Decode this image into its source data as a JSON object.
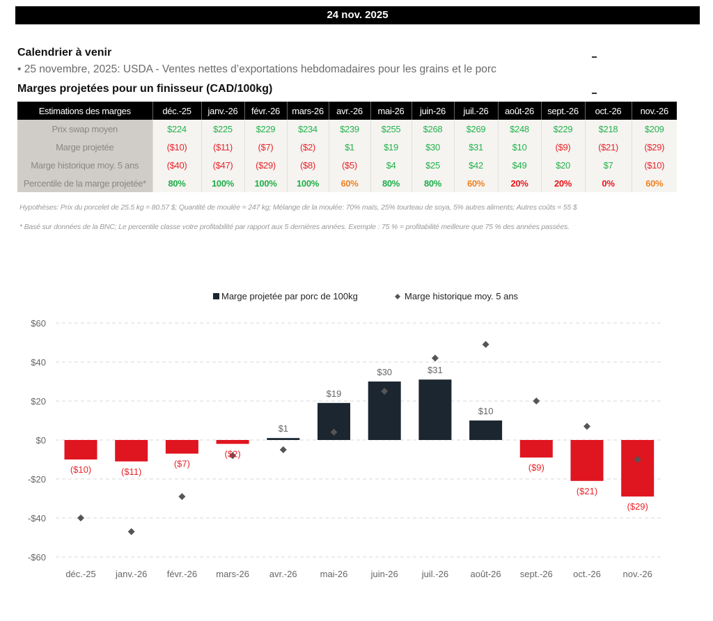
{
  "header": {
    "date": "24 nov. 2025"
  },
  "calendar": {
    "title": "Calendrier à venir",
    "items": [
      "• 25 novembre, 2025: USDA - Ventes nettes d’exportations hebdomadaires pour les grains et le porc"
    ]
  },
  "margins_section": {
    "title": "Marges projetées pour un finisseur (CAD/100kg)"
  },
  "table": {
    "corner_label": "Estimations des marges",
    "months": [
      "déc.-25",
      "janv.-26",
      "févr.-26",
      "mars-26",
      "avr.-26",
      "mai-26",
      "juin-26",
      "juil.-26",
      "août-26",
      "sept.-26",
      "oct.-26",
      "nov.-26"
    ],
    "rows": [
      {
        "label": "Prix swap moyen",
        "values": [
          "$224",
          "$225",
          "$229",
          "$234",
          "$239",
          "$255",
          "$268",
          "$269",
          "$248",
          "$229",
          "$218",
          "$209"
        ]
      },
      {
        "label": "Marge projetée",
        "values": [
          "($10)",
          "($11)",
          "($7)",
          "($2)",
          "$1",
          "$19",
          "$30",
          "$31",
          "$10",
          "($9)",
          "($21)",
          "($29)"
        ]
      },
      {
        "label": "Marge historique moy. 5 ans",
        "values": [
          "($40)",
          "($47)",
          "($29)",
          "($8)",
          "($5)",
          "$4",
          "$25",
          "$42",
          "$49",
          "$20",
          "$7",
          "($10)"
        ]
      },
      {
        "label": "Percentile de la marge projetée*",
        "values": [
          "80%",
          "100%",
          "100%",
          "100%",
          "60%",
          "80%",
          "80%",
          "60%",
          "20%",
          "20%",
          "0%",
          "60%"
        ]
      }
    ]
  },
  "notes": {
    "hypotheses": "Hypothèses: Prix du porcelet de 25.5 kg = 80.57 $; Quantité de moulée = 247 kg; Mélange de la moulée: 70% maïs, 25% tourteau de soya, 5% autres aliments; Autres coûts = 55 $",
    "footnote": "* Basé sur données de la BNC; Le percentile classe votre profitabilité par rapport aux 5 dernières années. Exemple : 75 % = profitabilité meilleure que 75 % des années passées."
  },
  "colors": {
    "positive_bar": "#1b2631",
    "negative_bar": "#df1520",
    "diamond": "#555555",
    "pos_text": "#22b24c",
    "neg_text": "#e8232a"
  },
  "chart_data": {
    "type": "bar",
    "title": "",
    "xlabel": "",
    "ylabel": "",
    "categories": [
      "déc.-25",
      "janv.-26",
      "févr.-26",
      "mars-26",
      "avr.-26",
      "mai-26",
      "juin-26",
      "juil.-26",
      "août-26",
      "sept.-26",
      "oct.-26",
      "nov.-26"
    ],
    "series": [
      {
        "name": "Marge projetée par porc de 100kg",
        "kind": "bar",
        "values": [
          -10,
          -11,
          -7,
          -2,
          1,
          19,
          30,
          31,
          10,
          -9,
          -21,
          -29
        ],
        "labels": [
          "($10)",
          "($11)",
          "($7)",
          "($2)",
          "$1",
          "$19",
          "$30",
          "$31",
          "$10",
          "($9)",
          "($21)",
          "($29)"
        ]
      },
      {
        "name": "Marge historique moy. 5 ans",
        "kind": "scatter-diamond",
        "values": [
          -40,
          -47,
          -29,
          -8,
          -5,
          4,
          25,
          42,
          49,
          20,
          7,
          -10
        ]
      }
    ],
    "ylim": [
      -60,
      60
    ],
    "yticks": [
      60,
      40,
      20,
      0,
      -20,
      -40,
      -60
    ],
    "ytick_labels": [
      "$60",
      "$40",
      "$20",
      "$0",
      "-$20",
      "-$40",
      "-$60"
    ],
    "grid": true,
    "legend": "top-center"
  }
}
